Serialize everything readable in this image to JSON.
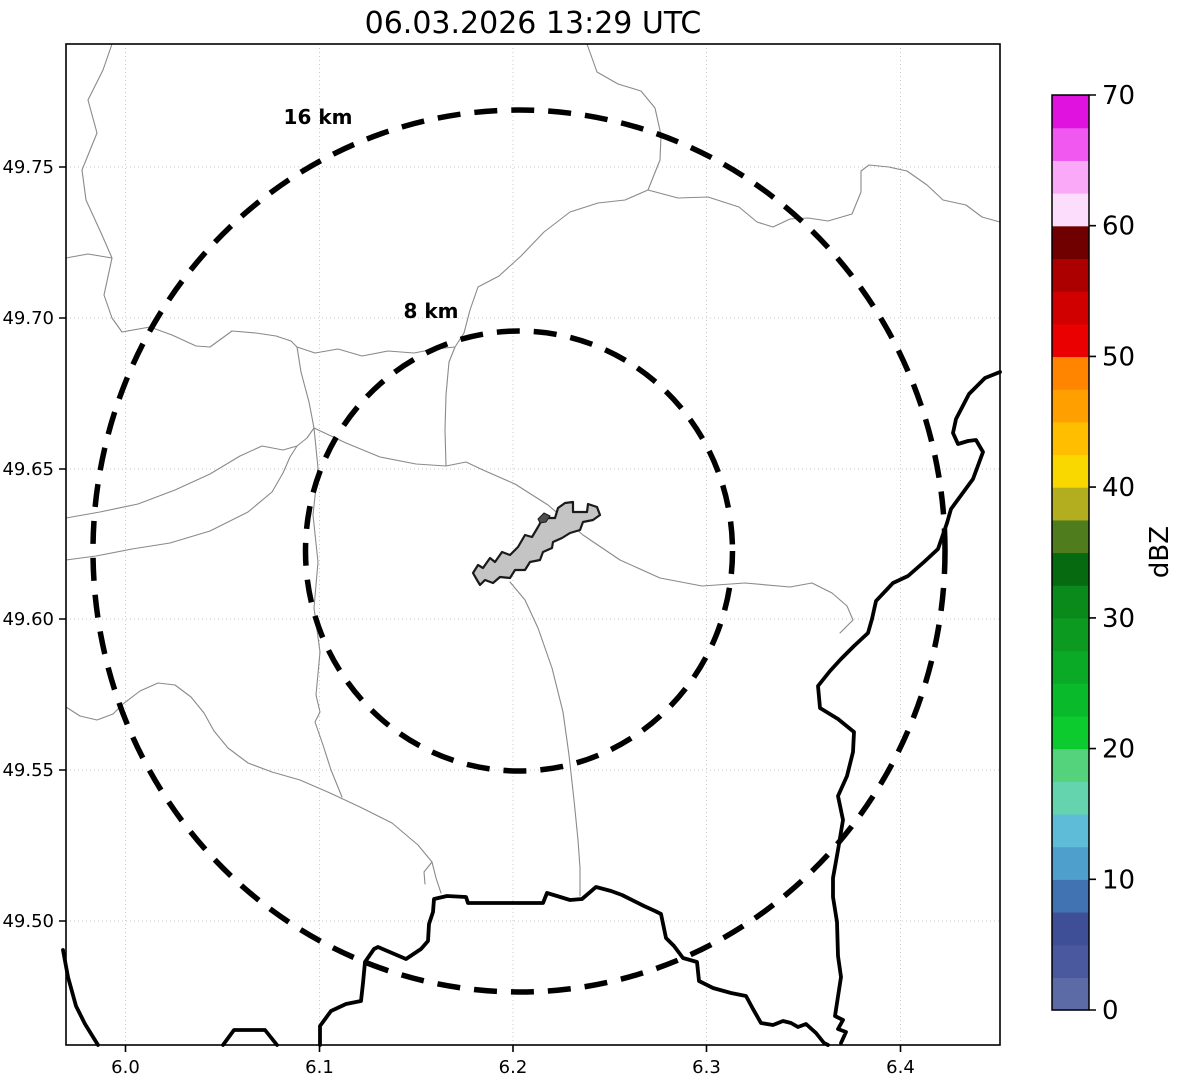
{
  "title": "06.03.2026 13:29 UTC",
  "map": {
    "range_rings": [
      {
        "label": "16 km"
      },
      {
        "label": "8 km"
      }
    ]
  },
  "axes": {
    "x_ticks": [
      "6.0",
      "6.1",
      "6.2",
      "6.3",
      "6.4"
    ],
    "y_ticks": [
      "49.75",
      "49.70",
      "49.65",
      "49.60",
      "49.55",
      "49.50"
    ]
  },
  "colorbar": {
    "label": "dBZ",
    "ticks": [
      "70",
      "60",
      "50",
      "40",
      "30",
      "20",
      "10",
      "0"
    ],
    "segments": [
      "#5c6ba5",
      "#4a589d",
      "#3e4e97",
      "#4173b3",
      "#4f9fcc",
      "#5fbcd8",
      "#63d4ae",
      "#55d27c",
      "#0bcb2e",
      "#09bb2a",
      "#0aaa26",
      "#0d9a21",
      "#0b8a1c",
      "#056a10",
      "#4f7d1e",
      "#b3ad20",
      "#f9d800",
      "#ffbf00",
      "#ffa000",
      "#ff8500",
      "#ea0000",
      "#d00000",
      "#ac0000",
      "#700000",
      "#fcdefc",
      "#f9a9f7",
      "#f058ef",
      "#e012e0"
    ]
  },
  "chart_data": {
    "type": "map",
    "title": "06.03.2026 13:29 UTC",
    "x_axis": {
      "ticks": [
        6.0,
        6.1,
        6.2,
        6.3,
        6.4
      ],
      "range": [
        5.97,
        6.45
      ],
      "unit": "degrees longitude"
    },
    "y_axis": {
      "ticks": [
        49.5,
        49.55,
        49.6,
        49.65,
        49.7,
        49.75
      ],
      "range": [
        49.46,
        49.79
      ],
      "unit": "degrees latitude"
    },
    "range_rings_km": [
      8,
      16
    ],
    "ring_center_lonlat": [
      6.2,
      49.62
    ],
    "colorbar": {
      "label": "dBZ",
      "min": 0,
      "max": 70,
      "tick_step": 10,
      "segment_step": 2.5
    },
    "radar_echoes": "none visible (clear map)",
    "grid": true,
    "features": [
      "gray administrative boundary lines",
      "thick black country borders incl. meandering Moselle river",
      "gray airport outline polygon at ring center"
    ]
  }
}
